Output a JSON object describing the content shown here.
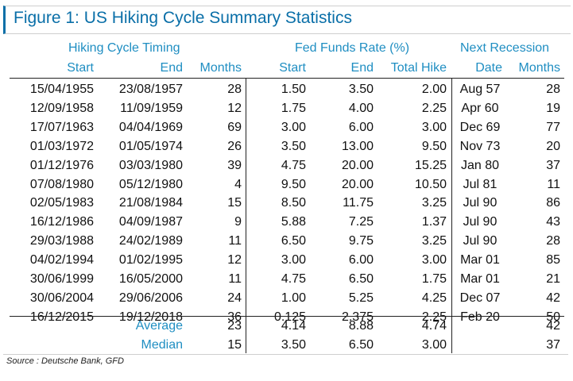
{
  "title": "Figure 1: US Hiking Cycle Summary Statistics",
  "groups": {
    "timing": "Hiking Cycle Timing",
    "fed": "Fed Funds Rate (%)",
    "recession": "Next Recession"
  },
  "columns": [
    "Start",
    "End",
    "Months",
    "Start",
    "End",
    "Total Hike",
    "Date",
    "Months"
  ],
  "rows": [
    [
      "15/04/1955",
      "23/08/1957",
      "28",
      "1.50",
      "3.50",
      "2.00",
      "Aug 57",
      "28"
    ],
    [
      "12/09/1958",
      "11/09/1959",
      "12",
      "1.75",
      "4.00",
      "2.25",
      "Apr 60",
      "19"
    ],
    [
      "17/07/1963",
      "04/04/1969",
      "69",
      "3.00",
      "6.00",
      "3.00",
      "Dec 69",
      "77"
    ],
    [
      "01/03/1972",
      "01/05/1974",
      "26",
      "3.50",
      "13.00",
      "9.50",
      "Nov 73",
      "20"
    ],
    [
      "01/12/1976",
      "03/03/1980",
      "39",
      "4.75",
      "20.00",
      "15.25",
      "Jan 80",
      "37"
    ],
    [
      "07/08/1980",
      "05/12/1980",
      "4",
      "9.50",
      "20.00",
      "10.50",
      "Jul 81",
      "11"
    ],
    [
      "02/05/1983",
      "21/08/1984",
      "15",
      "8.50",
      "11.75",
      "3.25",
      "Jul 90",
      "86"
    ],
    [
      "16/12/1986",
      "04/09/1987",
      "9",
      "5.88",
      "7.25",
      "1.37",
      "Jul 90",
      "43"
    ],
    [
      "29/03/1988",
      "24/02/1989",
      "11",
      "6.50",
      "9.75",
      "3.25",
      "Jul 90",
      "28"
    ],
    [
      "04/02/1994",
      "01/02/1995",
      "12",
      "3.00",
      "6.00",
      "3.00",
      "Mar 01",
      "85"
    ],
    [
      "30/06/1999",
      "16/05/2000",
      "11",
      "4.75",
      "6.50",
      "1.75",
      "Mar 01",
      "21"
    ],
    [
      "30/06/2004",
      "29/06/2006",
      "24",
      "1.00",
      "5.25",
      "4.25",
      "Dec 07",
      "42"
    ],
    [
      "16/12/2015",
      "19/12/2018",
      "36",
      "0.125",
      "2.375",
      "2.25",
      "Feb 20",
      "50"
    ]
  ],
  "stats": [
    {
      "label": "Average",
      "months": "23",
      "start": "4.14",
      "end": "8.88",
      "hike": "4.74",
      "rec_date": "",
      "rec_months": "42"
    },
    {
      "label": "Median",
      "months": "15",
      "start": "3.50",
      "end": "6.50",
      "hike": "3.00",
      "rec_date": "",
      "rec_months": "37"
    }
  ],
  "source": "Source : Deutsche Bank, GFD",
  "colors": {
    "accent": "#1f8ec2",
    "title": "#0a6fa8"
  }
}
